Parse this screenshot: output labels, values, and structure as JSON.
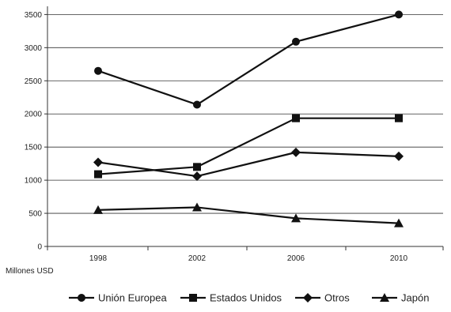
{
  "chart_data": {
    "type": "line",
    "title": "",
    "ylabel": "Millones USD",
    "xlabel": "",
    "x": [
      "1998",
      "2002",
      "2006",
      "2010"
    ],
    "y_ticks": [
      0,
      500,
      1000,
      1500,
      2000,
      2500,
      3000,
      3500
    ],
    "ylim": [
      0,
      3600
    ],
    "grid": "horizontal",
    "legend_position": "bottom",
    "series": [
      {
        "name": "Unión Europea",
        "marker": "circle",
        "color": "#111111",
        "values": [
          2650,
          2140,
          3090,
          3500
        ]
      },
      {
        "name": "Estados Unidos",
        "marker": "square",
        "color": "#111111",
        "values": [
          1090,
          1200,
          1935,
          1935
        ]
      },
      {
        "name": "Otros",
        "marker": "diamond",
        "color": "#111111",
        "values": [
          1270,
          1060,
          1420,
          1360
        ]
      },
      {
        "name": "Japón",
        "marker": "triangle",
        "color": "#111111",
        "values": [
          550,
          590,
          425,
          350
        ]
      }
    ]
  }
}
